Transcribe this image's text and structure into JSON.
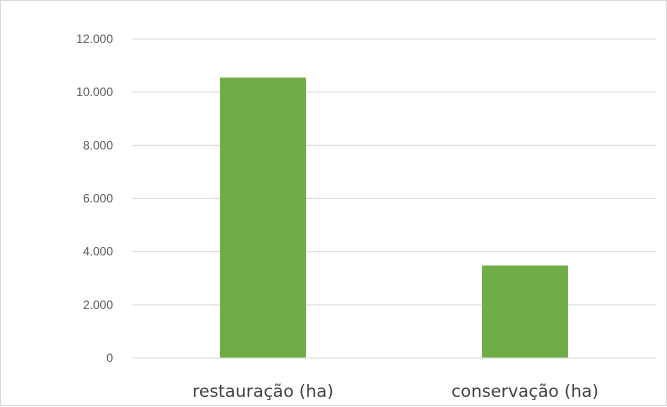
{
  "chart_data": {
    "type": "bar",
    "categories": [
      "restauração (ha)",
      "conservação (ha)"
    ],
    "values": [
      10550,
      3480
    ],
    "ylim": [
      0,
      12000
    ],
    "yticks": [
      0,
      2000,
      4000,
      6000,
      8000,
      10000,
      12000
    ],
    "ytick_labels": [
      "0",
      "2.000",
      "4.000",
      "6.000",
      "8.000",
      "10.000",
      "12.000"
    ],
    "grid": true,
    "legend": "none",
    "bar_color": "#70ad47",
    "grid_color": "#d9d9d9"
  }
}
